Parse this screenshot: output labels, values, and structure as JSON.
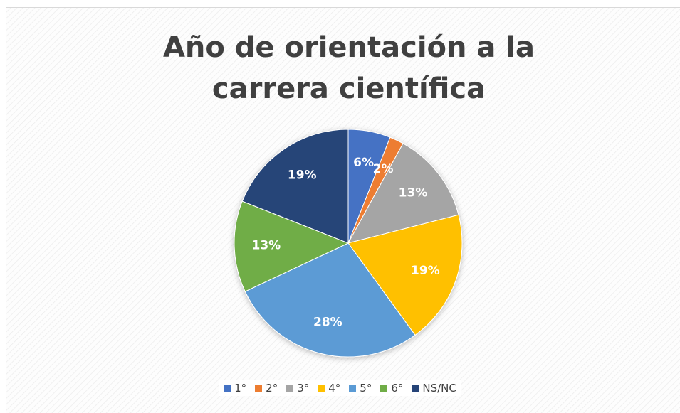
{
  "chart_data": {
    "type": "pie",
    "title": "Año de orientación a la carrera científica",
    "categories": [
      "1°",
      "2°",
      "3°",
      "4°",
      "5°",
      "6°",
      "NS/NC"
    ],
    "values": [
      6,
      2,
      13,
      19,
      28,
      13,
      19
    ],
    "value_labels": [
      "6%",
      "2%",
      "13%",
      "19%",
      "28%",
      "13%",
      "19%"
    ],
    "colors": [
      "#4472c4",
      "#ed7d31",
      "#a5a5a5",
      "#ffc000",
      "#5b9bd5",
      "#70ad47",
      "#264478"
    ],
    "legend": "bottom"
  }
}
